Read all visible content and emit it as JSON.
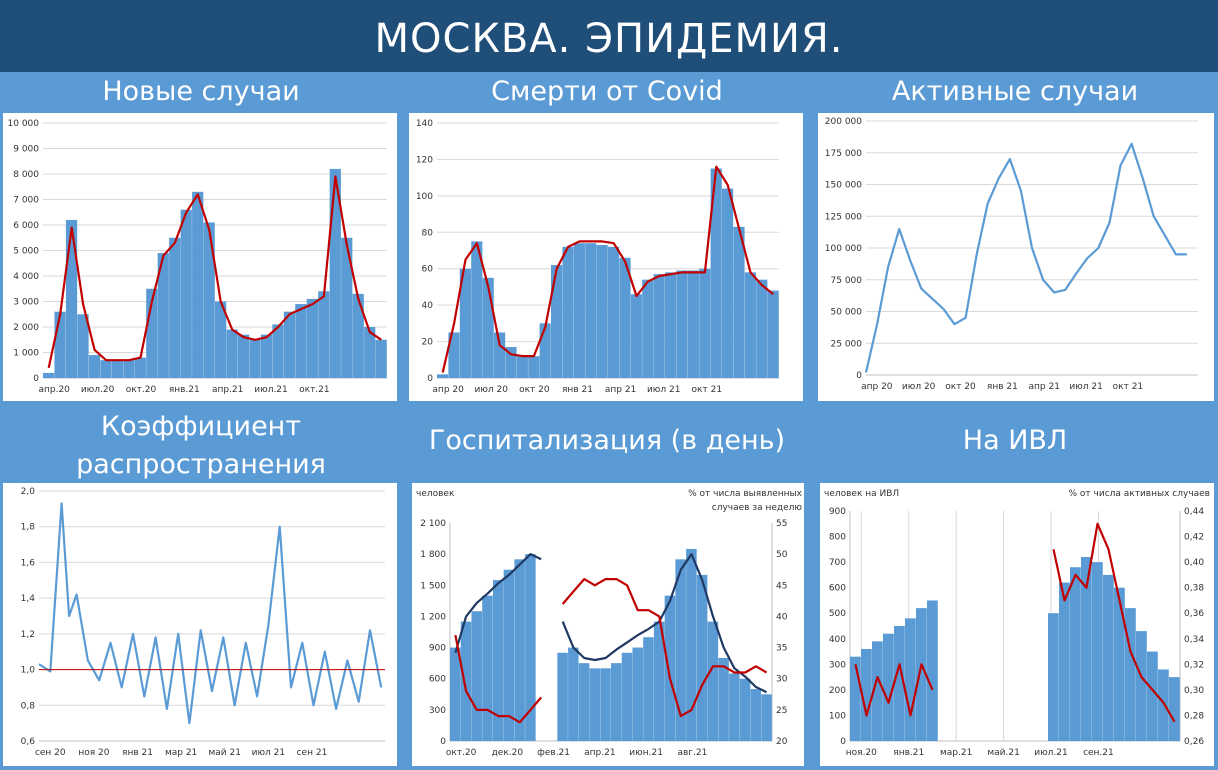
{
  "header": {
    "title": "МОСКВА. ЭПИДЕМИЯ."
  },
  "colors": {
    "bar": "#5b9bd5",
    "red": "#c00000",
    "navy": "#1f3864",
    "line": "#5b9bd5"
  },
  "chart_data": [
    {
      "id": "new-cases",
      "type": "bar",
      "title": "Новые случаи",
      "xticks": [
        "апр.20",
        "июл.20",
        "окт.20",
        "янв.21",
        "апр.21",
        "июл.21",
        "окт.21"
      ],
      "yticks": [
        "0",
        "1 000",
        "2 000",
        "3 000",
        "4 000",
        "5 000",
        "6 000",
        "7 000",
        "8 000",
        "9 000",
        "10 000"
      ],
      "ylim": [
        0,
        10000
      ],
      "series": [
        {
          "kind": "bar",
          "x": [
            0,
            3,
            6,
            9,
            12,
            15,
            18,
            21,
            24,
            27,
            30,
            33,
            36,
            39,
            42,
            45,
            48,
            51,
            54,
            57,
            60,
            63,
            66,
            69,
            72,
            75,
            78,
            81,
            84,
            87
          ],
          "values": [
            200,
            2600,
            6200,
            2500,
            900,
            700,
            700,
            700,
            800,
            3500,
            4900,
            5500,
            6600,
            7300,
            6100,
            3000,
            1900,
            1700,
            1500,
            1700,
            2100,
            2600,
            2900,
            3100,
            3400,
            8200,
            5500,
            3300,
            2000,
            1500
          ]
        },
        {
          "kind": "line",
          "x": [
            0,
            3,
            6,
            9,
            12,
            15,
            18,
            21,
            24,
            27,
            30,
            33,
            36,
            39,
            42,
            45,
            48,
            51,
            54,
            57,
            60,
            63,
            66,
            69,
            72,
            75,
            78,
            81,
            84,
            87
          ],
          "values": [
            400,
            2500,
            5900,
            2900,
            1100,
            700,
            700,
            700,
            800,
            3000,
            4800,
            5300,
            6500,
            7200,
            5800,
            3000,
            1900,
            1600,
            1500,
            1600,
            2000,
            2500,
            2700,
            2900,
            3200,
            7900,
            5200,
            3100,
            1800,
            1500
          ]
        }
      ]
    },
    {
      "id": "covid-deaths",
      "type": "bar",
      "title": "Смерти от Covid",
      "xticks": [
        "апр 20",
        "июл 20",
        "окт 20",
        "янв 21",
        "апр 21",
        "июл 21",
        "окт 21"
      ],
      "yticks": [
        "0",
        "20",
        "40",
        "60",
        "80",
        "100",
        "120",
        "140"
      ],
      "ylim": [
        0,
        140
      ],
      "series": [
        {
          "kind": "bar",
          "x": [
            0,
            3,
            6,
            9,
            12,
            15,
            18,
            21,
            24,
            27,
            30,
            33,
            36,
            39,
            42,
            45,
            48,
            51,
            54,
            57,
            60,
            63,
            66,
            69,
            72,
            75,
            78,
            81,
            84,
            87
          ],
          "values": [
            2,
            25,
            60,
            75,
            55,
            25,
            17,
            12,
            12,
            30,
            62,
            72,
            74,
            74,
            73,
            72,
            66,
            46,
            54,
            57,
            58,
            59,
            59,
            60,
            115,
            104,
            83,
            58,
            54,
            48
          ]
        },
        {
          "kind": "line",
          "x": [
            0,
            3,
            6,
            9,
            12,
            15,
            18,
            21,
            24,
            27,
            30,
            33,
            36,
            39,
            42,
            45,
            48,
            51,
            54,
            57,
            60,
            63,
            66,
            69,
            72,
            75,
            78,
            81,
            84,
            87
          ],
          "values": [
            3,
            30,
            65,
            74,
            50,
            18,
            13,
            12,
            12,
            28,
            60,
            72,
            75,
            75,
            75,
            74,
            64,
            45,
            53,
            56,
            57,
            58,
            58,
            58,
            116,
            106,
            82,
            58,
            51,
            46
          ]
        }
      ]
    },
    {
      "id": "active-cases",
      "type": "line",
      "title": "Активные случаи",
      "xticks": [
        "апр 20",
        "июл 20",
        "окт 20",
        "янв 21",
        "апр 21",
        "июл 21",
        "окт 21"
      ],
      "yticks": [
        "0",
        "25 000",
        "50 000",
        "75 000",
        "100 000",
        "125 000",
        "150 000",
        "175 000",
        "200 000"
      ],
      "ylim": [
        0,
        200000
      ],
      "series": [
        {
          "kind": "line",
          "x": [
            0,
            3,
            6,
            9,
            12,
            15,
            18,
            21,
            24,
            27,
            30,
            33,
            36,
            39,
            42,
            45,
            48,
            51,
            54,
            57,
            60,
            63,
            66,
            69,
            72,
            75,
            78,
            81,
            84,
            87
          ],
          "values": [
            2000,
            40000,
            85000,
            115000,
            90000,
            68000,
            60000,
            52000,
            40000,
            45000,
            95000,
            135000,
            155000,
            170000,
            145000,
            100000,
            75000,
            65000,
            67000,
            80000,
            92000,
            100000,
            120000,
            165000,
            182000,
            155000,
            125000,
            110000,
            95000,
            95000
          ]
        }
      ]
    },
    {
      "id": "rt",
      "type": "line",
      "title": "Коэффициент распространения",
      "xticks": [
        "сен 20",
        "ноя 20",
        "янв 21",
        "мар 21",
        "май 21",
        "июл 21",
        "сен 21"
      ],
      "yticks": [
        "0,6",
        "0,8",
        "1,0",
        "1,2",
        "1,4",
        "1,6",
        "1,8",
        "2,0"
      ],
      "ylim": [
        0.6,
        2.0
      ],
      "series": [
        {
          "kind": "line",
          "x": [
            0,
            3,
            6,
            8,
            10,
            13,
            16,
            19,
            22,
            25,
            28,
            31,
            34,
            37,
            40,
            43,
            46,
            49,
            52,
            55,
            58,
            61,
            64,
            67,
            70,
            73,
            76,
            79,
            82,
            85,
            88,
            91
          ],
          "values": [
            1.03,
            0.99,
            1.93,
            1.3,
            1.42,
            1.05,
            0.94,
            1.15,
            0.9,
            1.2,
            0.85,
            1.18,
            0.78,
            1.2,
            0.7,
            1.22,
            0.88,
            1.18,
            0.8,
            1.15,
            0.85,
            1.25,
            1.8,
            0.9,
            1.15,
            0.8,
            1.1,
            0.78,
            1.05,
            0.82,
            1.22,
            0.9
          ]
        },
        {
          "kind": "hline",
          "value": 1.0
        }
      ]
    },
    {
      "id": "hospitalization",
      "type": "bar",
      "title": "Госпитализация (в день)",
      "ylabel_left": "человек",
      "ylabel_right_1": "% от числа выявленных",
      "ylabel_right_2": "случаев за неделю",
      "xticks": [
        "окт.20",
        "дек.20",
        "фев.21",
        "апр.21",
        "июн.21",
        "авг.21"
      ],
      "yticks_left": [
        "0",
        "300",
        "600",
        "900",
        "1 200",
        "1 500",
        "1 800",
        "2 100"
      ],
      "yticks_right": [
        "20",
        "25",
        "30",
        "35",
        "40",
        "45",
        "50",
        "55"
      ],
      "ylim_left": [
        0,
        2100
      ],
      "ylim_right": [
        20,
        55
      ],
      "series": [
        {
          "kind": "bar",
          "x": [
            0,
            3,
            6,
            9,
            12,
            15,
            18,
            21,
            24,
            27,
            30,
            33,
            36,
            39,
            42,
            45,
            48,
            51,
            54,
            57,
            60,
            63,
            66,
            69,
            72,
            75,
            78,
            81,
            84,
            87
          ],
          "values": [
            900,
            1150,
            1250,
            1400,
            1550,
            1650,
            1750,
            1800,
            null,
            null,
            850,
            900,
            750,
            700,
            700,
            750,
            850,
            900,
            1000,
            1150,
            1400,
            1750,
            1850,
            1600,
            1150,
            800,
            650,
            600,
            500,
            450
          ]
        },
        {
          "kind": "line",
          "axis": "left",
          "x": [
            0,
            3,
            6,
            9,
            12,
            15,
            18,
            21,
            24,
            27,
            30,
            33,
            36,
            39,
            42,
            45,
            48,
            51,
            54,
            57,
            60,
            63,
            66,
            69,
            72,
            75,
            78,
            81,
            84,
            87
          ],
          "values": [
            850,
            1200,
            1330,
            1420,
            1520,
            1600,
            1700,
            1800,
            1750,
            null,
            1150,
            900,
            800,
            780,
            800,
            880,
            950,
            1020,
            1080,
            1150,
            1350,
            1650,
            1800,
            1550,
            1200,
            900,
            700,
            620,
            520,
            470
          ]
        },
        {
          "kind": "line",
          "axis": "right",
          "x": [
            0,
            3,
            6,
            9,
            12,
            15,
            18,
            21,
            24,
            27,
            30,
            33,
            36,
            39,
            42,
            45,
            48,
            51,
            54,
            57,
            60,
            63,
            66,
            69,
            72,
            75,
            78,
            81,
            84,
            87
          ],
          "values": [
            37,
            28,
            25,
            25,
            24,
            24,
            23,
            25,
            27,
            null,
            42,
            44,
            46,
            45,
            46,
            46,
            45,
            41,
            41,
            40,
            30,
            24,
            25,
            29,
            32,
            32,
            31,
            31,
            32,
            31
          ]
        }
      ]
    },
    {
      "id": "ventilation",
      "type": "bar",
      "title": "На ИВЛ",
      "ylabel_left": "человек на ИВЛ",
      "ylabel_right": "% от числа активных случаев",
      "xticks": [
        "ноя.20",
        "янв.21",
        "мар.21",
        "май.21",
        "июл.21",
        "сен.21"
      ],
      "yticks_left": [
        "0",
        "100",
        "200",
        "300",
        "400",
        "500",
        "600",
        "700",
        "800",
        "900"
      ],
      "yticks_right": [
        "0,26",
        "0,28",
        "0,30",
        "0,32",
        "0,34",
        "0,36",
        "0,38",
        "0,40",
        "0,42",
        "0,44"
      ],
      "ylim_left": [
        0,
        900
      ],
      "ylim_right": [
        0.26,
        0.44
      ],
      "series": [
        {
          "kind": "bar",
          "x": [
            0,
            3,
            6,
            9,
            12,
            15,
            18,
            21,
            24,
            27,
            30,
            33,
            36,
            39,
            42,
            45,
            48,
            51,
            54,
            57,
            60,
            63,
            66,
            69,
            72,
            75,
            78,
            81,
            84,
            87
          ],
          "values": [
            330,
            360,
            390,
            420,
            450,
            480,
            520,
            550,
            null,
            null,
            null,
            null,
            null,
            null,
            null,
            null,
            null,
            null,
            500,
            620,
            680,
            720,
            700,
            650,
            600,
            520,
            430,
            350,
            280,
            250
          ]
        },
        {
          "kind": "line",
          "axis": "right",
          "x": [
            0,
            3,
            6,
            9,
            12,
            15,
            18,
            21,
            24,
            27,
            30,
            33,
            36,
            39,
            42,
            45,
            48,
            51,
            54,
            57,
            60,
            63,
            66,
            69,
            72,
            75,
            78,
            81,
            84,
            87
          ],
          "values": [
            0.32,
            0.28,
            0.31,
            0.29,
            0.32,
            0.28,
            0.32,
            0.3,
            null,
            null,
            null,
            null,
            null,
            null,
            null,
            null,
            null,
            null,
            0.41,
            0.37,
            0.39,
            0.38,
            0.43,
            0.41,
            0.37,
            0.33,
            0.31,
            0.3,
            0.29,
            0.275
          ]
        }
      ]
    }
  ]
}
